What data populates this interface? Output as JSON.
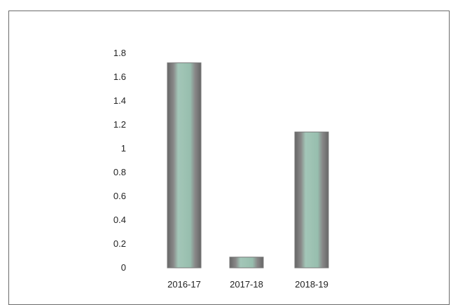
{
  "chart_data": {
    "type": "bar",
    "categories": [
      "2016-17",
      "2017-18",
      "2018-19"
    ],
    "values": [
      1.72,
      0.09,
      1.14
    ],
    "ylim": [
      0,
      1.8
    ],
    "yticks": [
      "0",
      "0.2",
      "0.4",
      "0.6",
      "0.8",
      "1",
      "1.2",
      "1.4",
      "1.6",
      "1.8"
    ],
    "grid": false,
    "legend": "none",
    "colors": {
      "bar_fill": "#8fb9a8",
      "bar_edge": "#6e6e6e",
      "background": "#ffffff",
      "frame": "#6b6b6b"
    }
  }
}
